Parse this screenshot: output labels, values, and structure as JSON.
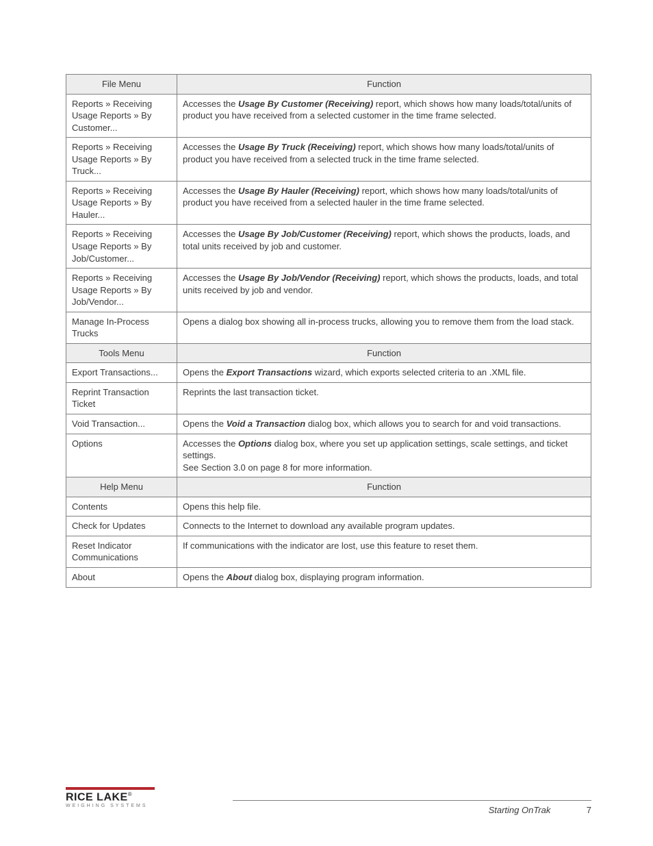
{
  "sections": [
    {
      "header": {
        "left": "File Menu",
        "right": "Function"
      },
      "rows": [
        {
          "menu": "Reports  » Receiving Usage Reports » By Customer...",
          "func_pre": "Accesses the ",
          "func_em": "Usage By Customer (Receiving)",
          "func_post": " report, which shows how many loads/total/units of product you have received from a selected customer in the time frame selected."
        },
        {
          "menu": "Reports  » Receiving Usage Reports » By Truck...",
          "func_pre": "Accesses the ",
          "func_em": "Usage By Truck (Receiving)",
          "func_post": " report, which shows how many loads/total/units of product you have received from a selected truck in the time frame selected."
        },
        {
          "menu": "Reports  » Receiving Usage Reports » By Hauler...",
          "func_pre": "Accesses the ",
          "func_em": "Usage By Hauler (Receiving)",
          "func_post": " report, which shows how many loads/total/units of product you have received from a selected hauler in the time frame selected."
        },
        {
          "menu": "Reports  » Receiving Usage Reports » By Job/Customer...",
          "func_pre": "Accesses the ",
          "func_em": "Usage By Job/Customer (Receiving)",
          "func_post": " report, which shows the products, loads, and total units received by job and customer."
        },
        {
          "menu": "Reports  » Receiving Usage Reports » By Job/Vendor...",
          "func_pre": "Accesses the ",
          "func_em": "Usage By Job/Vendor (Receiving)",
          "func_post": " report, which shows the products, loads, and total units received by job and vendor."
        },
        {
          "menu": "Manage In-Process Trucks",
          "func_pre": "Opens a dialog box showing all in-process trucks, allowing you to remove them from the load stack.",
          "func_em": "",
          "func_post": ""
        }
      ]
    },
    {
      "header": {
        "left": "Tools Menu",
        "right": "Function"
      },
      "rows": [
        {
          "menu": "Export Transactions...",
          "func_pre": "Opens the ",
          "func_em": "Export Transactions",
          "func_post": " wizard, which exports selected criteria to an .XML file."
        },
        {
          "menu": "Reprint Transaction Ticket",
          "func_pre": "Reprints the last transaction ticket.",
          "func_em": "",
          "func_post": ""
        },
        {
          "menu": "Void Transaction...",
          "func_pre": "Opens the ",
          "func_em": "Void a Transaction",
          "func_post": " dialog box, which allows you to search for and void transactions."
        },
        {
          "menu": "Options",
          "func_pre": "Accesses the ",
          "func_em": "Options",
          "func_post": " dialog box, where you set up application settings, scale settings, and ticket settings.",
          "func_extra": "See Section 3.0 on page 8 for more information."
        }
      ]
    },
    {
      "header": {
        "left": "Help Menu",
        "right": "Function"
      },
      "rows": [
        {
          "menu": "Contents",
          "func_pre": "Opens this help file.",
          "func_em": "",
          "func_post": ""
        },
        {
          "menu": "Check for Updates",
          "func_pre": "Connects to the Internet to download any available program updates.",
          "func_em": "",
          "func_post": ""
        },
        {
          "menu": "Reset Indicator Communications",
          "func_pre": "If communications with the indicator are lost, use this feature to reset them.",
          "func_em": "",
          "func_post": ""
        },
        {
          "menu": "About",
          "func_pre": "Opens the ",
          "func_em": "About",
          "func_post": " dialog box, displaying program information."
        }
      ]
    }
  ],
  "footer": {
    "brand": "RICE LAKE",
    "subtitle": "WEIGHING SYSTEMS",
    "section": "Starting OnTrak",
    "page": "7"
  }
}
